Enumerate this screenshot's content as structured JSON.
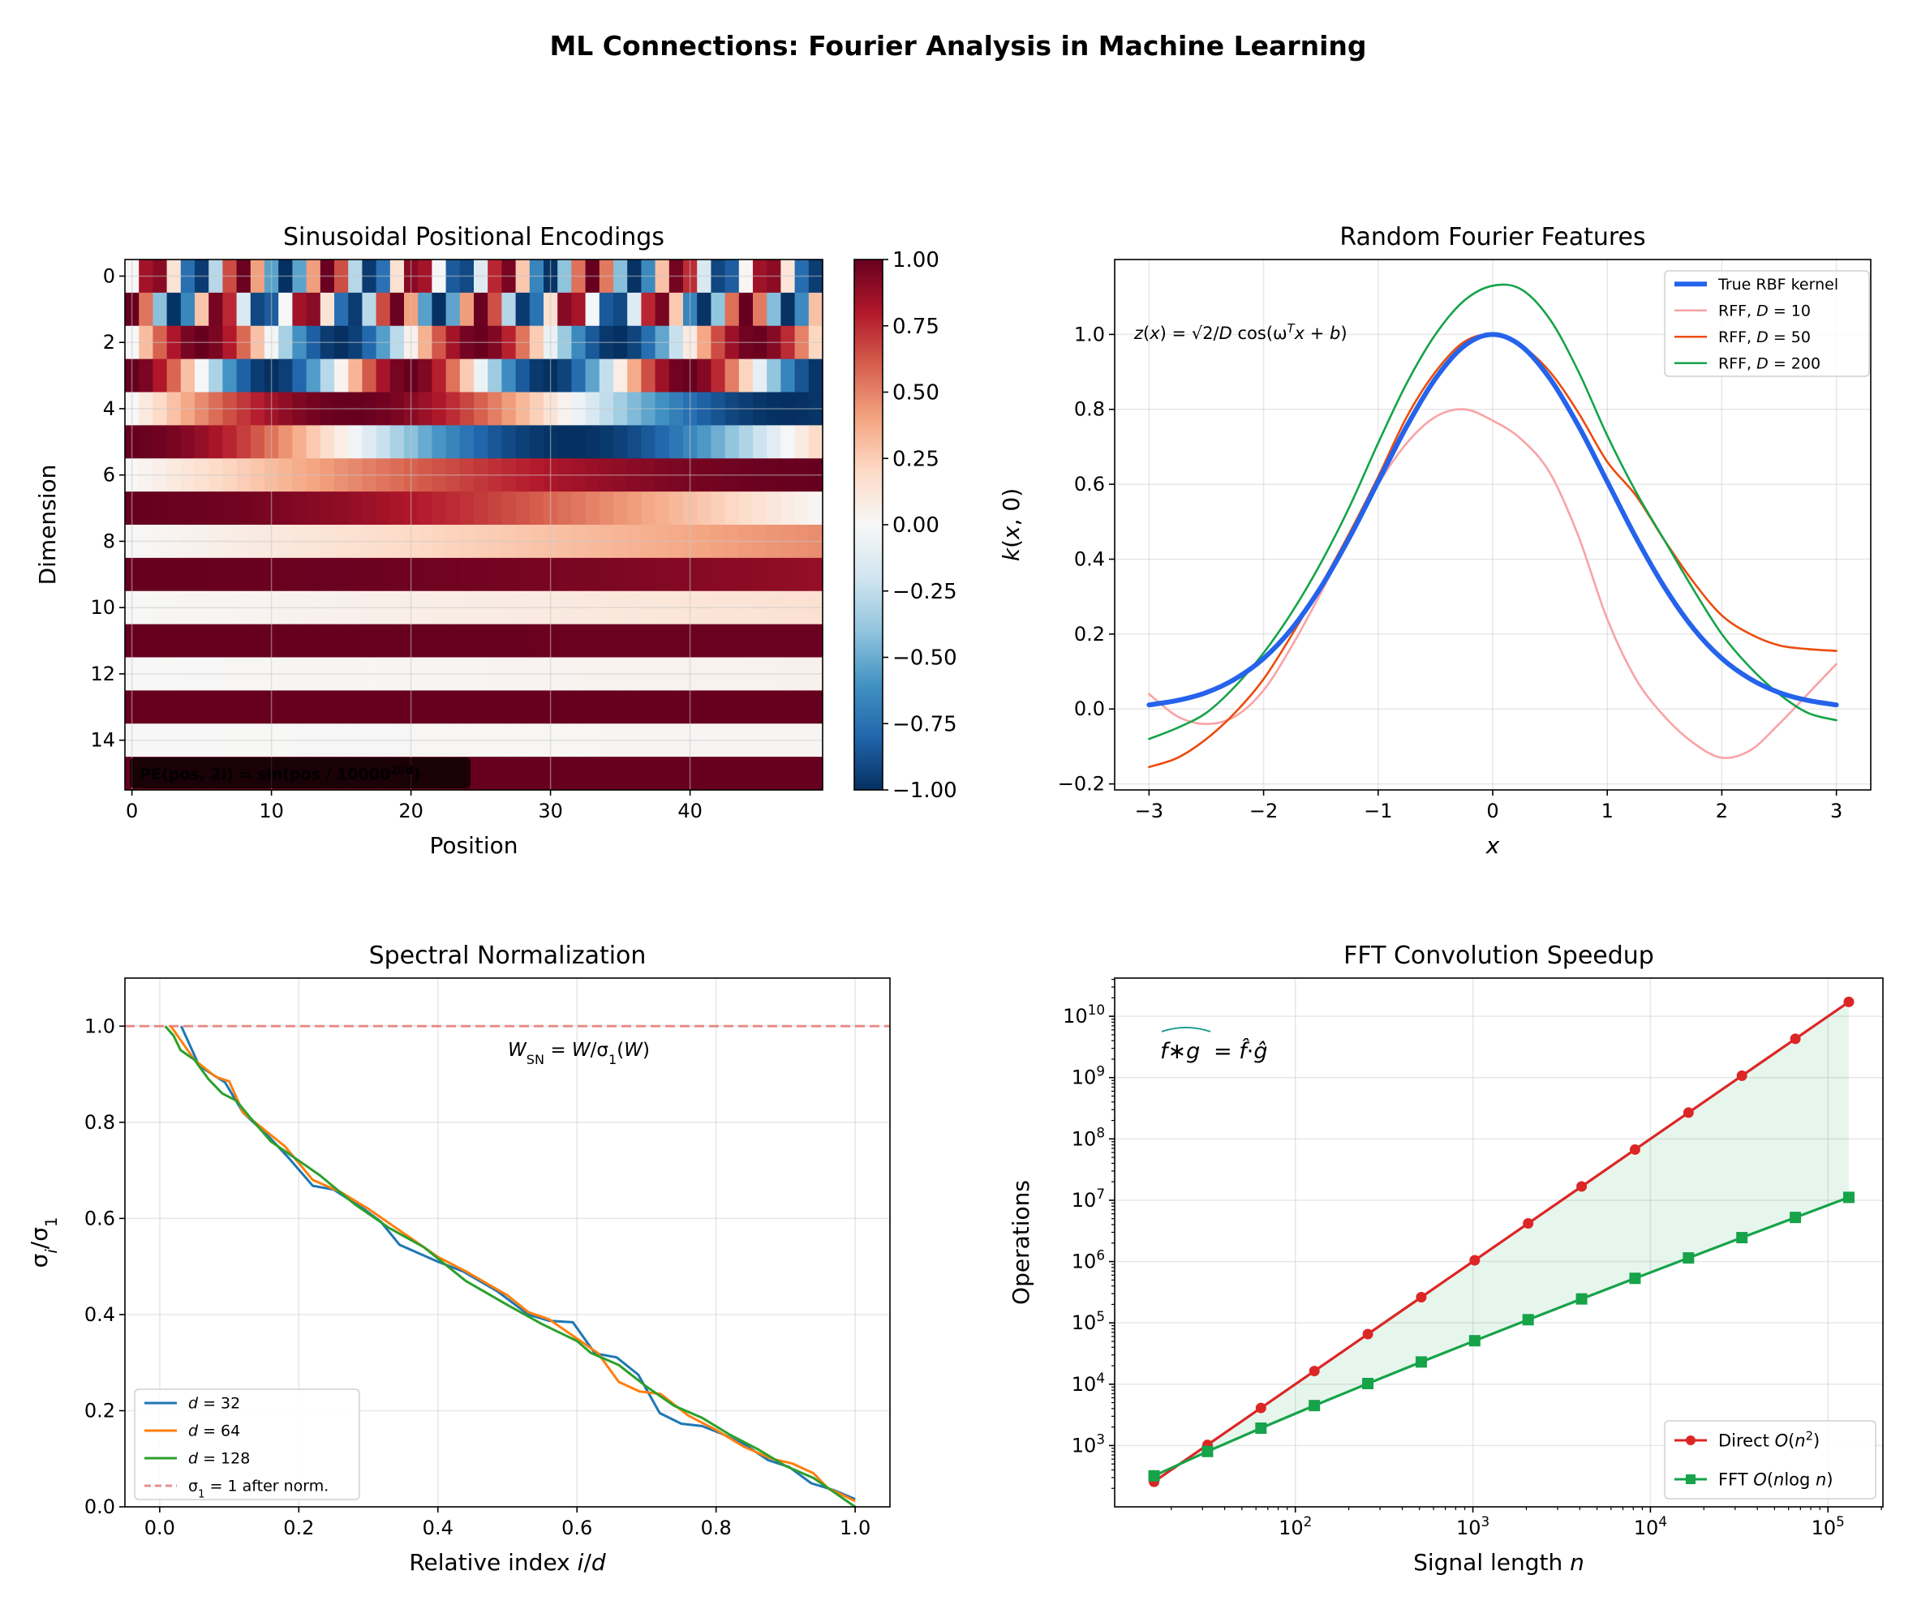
{
  "suptitle": "ML Connections: Fourier Analysis in Machine Learning",
  "chart_data": [
    {
      "type": "heatmap",
      "title": "Sinusoidal Positional Encodings",
      "xlabel": "Position",
      "ylabel": "Dimension",
      "positions": 50,
      "dimensions": 16,
      "base": 10000,
      "rule": "even rows sin(pos/base^(2i/d)), odd rows cos(pos/base^(2i/d))",
      "xticks": [
        0,
        10,
        20,
        30,
        40
      ],
      "yticks": [
        0,
        2,
        4,
        6,
        8,
        10,
        12,
        14
      ],
      "colormap": "RdBu_r",
      "colormap_stops": [
        "#67001f",
        "#b2182b",
        "#d6604d",
        "#f4a582",
        "#fddbc7",
        "#f7f7f7",
        "#d1e5f0",
        "#92c5de",
        "#4393c3",
        "#2166ac",
        "#053061"
      ],
      "clim": [
        -1,
        1
      ],
      "colorbar_ticks": [
        1.0,
        0.75,
        0.5,
        0.25,
        0.0,
        -0.25,
        -0.5,
        -0.75,
        -1.0
      ],
      "colorbar_tick_labels": [
        "1.00",
        "0.75",
        "0.50",
        "0.25",
        "0.00",
        "−0.25",
        "−0.50",
        "−0.75",
        "−1.00"
      ],
      "annotation": "PE(pos, 2i) = sin(pos / 10000^{2i/d})",
      "grid": true
    },
    {
      "type": "line",
      "title": "Random Fourier Features",
      "xlabel": "*x*",
      "ylabel": "*k*(*x*, 0)",
      "xlim": [
        -3.3,
        3.3
      ],
      "ylim": [
        -0.216,
        1.2
      ],
      "xticks": [
        -3,
        -2,
        -1,
        0,
        1,
        2,
        3
      ],
      "xtick_labels": [
        "−3",
        "−2",
        "−1",
        "0",
        "1",
        "2",
        "3"
      ],
      "yticks": [
        -0.2,
        0.0,
        0.2,
        0.4,
        0.6,
        0.8,
        1.0
      ],
      "ytick_labels": [
        "−0.2",
        "0.0",
        "0.2",
        "0.4",
        "0.6",
        "0.8",
        "1.0"
      ],
      "grid": true,
      "legend_position": "top-right",
      "annotation": "*z*(*x*) = √2/*D* cos(ω^{*T*}*x* + *b*)",
      "x": [
        -3,
        -2.75,
        -2.5,
        -2.25,
        -2,
        -1.75,
        -1.5,
        -1.25,
        -1,
        -0.75,
        -0.5,
        -0.25,
        0,
        0.25,
        0.5,
        0.75,
        1,
        1.25,
        1.5,
        1.75,
        2,
        2.25,
        2.5,
        2.75,
        3
      ],
      "series": [
        {
          "name": "True RBF kernel",
          "color": "#2563eb",
          "width": "thick",
          "values": [
            0.011,
            0.023,
            0.044,
            0.08,
            0.135,
            0.216,
            0.325,
            0.458,
            0.607,
            0.755,
            0.882,
            0.969,
            1.0,
            0.969,
            0.882,
            0.755,
            0.607,
            0.458,
            0.325,
            0.216,
            0.135,
            0.08,
            0.044,
            0.023,
            0.011
          ]
        },
        {
          "name": "RFF, *D* = 10",
          "color": "#f9a3a6",
          "values": [
            0.04,
            -0.02,
            -0.04,
            -0.02,
            0.05,
            0.17,
            0.31,
            0.46,
            0.6,
            0.71,
            0.78,
            0.8,
            0.77,
            0.72,
            0.63,
            0.46,
            0.24,
            0.08,
            -0.02,
            -0.09,
            -0.13,
            -0.11,
            -0.04,
            0.04,
            0.12
          ]
        },
        {
          "name": "RFF, *D* = 50",
          "color": "#ea4c0e",
          "values": [
            -0.155,
            -0.13,
            -0.08,
            -0.01,
            0.08,
            0.2,
            0.33,
            0.47,
            0.62,
            0.78,
            0.9,
            0.98,
            1.0,
            0.97,
            0.9,
            0.79,
            0.66,
            0.57,
            0.45,
            0.34,
            0.25,
            0.2,
            0.17,
            0.16,
            0.155
          ]
        },
        {
          "name": "RFF, *D* = 200",
          "color": "#16a34a",
          "values": [
            -0.08,
            -0.05,
            -0.01,
            0.06,
            0.15,
            0.26,
            0.39,
            0.54,
            0.71,
            0.87,
            1.0,
            1.09,
            1.13,
            1.12,
            1.04,
            0.9,
            0.73,
            0.58,
            0.45,
            0.32,
            0.2,
            0.11,
            0.04,
            -0.01,
            -0.03
          ]
        }
      ]
    },
    {
      "type": "line",
      "title": "Spectral Normalization",
      "xlabel": "Relative index *i*/*d*",
      "ylabel": "σ_{*i*}/σ_{1}",
      "xlim": [
        -0.05,
        1.05
      ],
      "ylim": [
        0,
        1.1
      ],
      "xticks": [
        0,
        0.2,
        0.4,
        0.6,
        0.8,
        1.0
      ],
      "xtick_labels": [
        "0.0",
        "0.2",
        "0.4",
        "0.6",
        "0.8",
        "1.0"
      ],
      "yticks": [
        0,
        0.2,
        0.4,
        0.6,
        0.8,
        1.0
      ],
      "ytick_labels": [
        "0.0",
        "0.2",
        "0.4",
        "0.6",
        "0.8",
        "1.0"
      ],
      "grid": true,
      "legend_position": "bottom-left",
      "annotation": "*W*_{SN} = *W*/σ_{1}(*W*)",
      "series": [
        {
          "name": "*d* = 32",
          "color": "#1f77b4",
          "points": [
            [
              0.031,
              1.0
            ],
            [
              0.057,
              0.917
            ],
            [
              0.094,
              0.883
            ],
            [
              0.12,
              0.82
            ],
            [
              0.157,
              0.77
            ],
            [
              0.186,
              0.725
            ],
            [
              0.22,
              0.668
            ],
            [
              0.25,
              0.66
            ],
            [
              0.293,
              0.62
            ],
            [
              0.318,
              0.593
            ],
            [
              0.345,
              0.545
            ],
            [
              0.4,
              0.51
            ],
            [
              0.436,
              0.49
            ],
            [
              0.486,
              0.448
            ],
            [
              0.53,
              0.4
            ],
            [
              0.56,
              0.387
            ],
            [
              0.594,
              0.384
            ],
            [
              0.626,
              0.319
            ],
            [
              0.657,
              0.311
            ],
            [
              0.688,
              0.275
            ],
            [
              0.719,
              0.195
            ],
            [
              0.75,
              0.173
            ],
            [
              0.78,
              0.168
            ],
            [
              0.81,
              0.151
            ],
            [
              0.844,
              0.127
            ],
            [
              0.875,
              0.097
            ],
            [
              0.905,
              0.083
            ],
            [
              0.937,
              0.049
            ],
            [
              0.969,
              0.035
            ],
            [
              1.0,
              0.016
            ]
          ]
        },
        {
          "name": "*d* = 64",
          "color": "#ff7f0e",
          "points": [
            [
              0.016,
              1.0
            ],
            [
              0.05,
              0.93
            ],
            [
              0.08,
              0.895
            ],
            [
              0.1,
              0.885
            ],
            [
              0.12,
              0.82
            ],
            [
              0.18,
              0.75
            ],
            [
              0.22,
              0.68
            ],
            [
              0.26,
              0.655
            ],
            [
              0.3,
              0.62
            ],
            [
              0.34,
              0.58
            ],
            [
              0.4,
              0.52
            ],
            [
              0.44,
              0.49
            ],
            [
              0.5,
              0.44
            ],
            [
              0.53,
              0.405
            ],
            [
              0.56,
              0.39
            ],
            [
              0.6,
              0.35
            ],
            [
              0.63,
              0.32
            ],
            [
              0.66,
              0.26
            ],
            [
              0.69,
              0.24
            ],
            [
              0.72,
              0.235
            ],
            [
              0.76,
              0.19
            ],
            [
              0.8,
              0.16
            ],
            [
              0.84,
              0.125
            ],
            [
              0.88,
              0.1
            ],
            [
              0.91,
              0.09
            ],
            [
              0.94,
              0.07
            ],
            [
              0.96,
              0.04
            ],
            [
              1.0,
              0.012
            ]
          ]
        },
        {
          "name": "*d* = 128",
          "color": "#2ca02c",
          "points": [
            [
              0.008,
              1.0
            ],
            [
              0.02,
              0.98
            ],
            [
              0.03,
              0.95
            ],
            [
              0.05,
              0.93
            ],
            [
              0.07,
              0.89
            ],
            [
              0.09,
              0.86
            ],
            [
              0.11,
              0.845
            ],
            [
              0.13,
              0.81
            ],
            [
              0.16,
              0.76
            ],
            [
              0.2,
              0.72
            ],
            [
              0.23,
              0.69
            ],
            [
              0.28,
              0.63
            ],
            [
              0.33,
              0.58
            ],
            [
              0.38,
              0.54
            ],
            [
              0.44,
              0.47
            ],
            [
              0.5,
              0.42
            ],
            [
              0.55,
              0.38
            ],
            [
              0.6,
              0.345
            ],
            [
              0.62,
              0.32
            ],
            [
              0.66,
              0.295
            ],
            [
              0.7,
              0.25
            ],
            [
              0.74,
              0.21
            ],
            [
              0.78,
              0.185
            ],
            [
              0.82,
              0.15
            ],
            [
              0.86,
              0.12
            ],
            [
              0.9,
              0.085
            ],
            [
              0.94,
              0.06
            ],
            [
              0.98,
              0.02
            ],
            [
              1.0,
              0.0
            ]
          ]
        }
      ],
      "reference_line": {
        "name": "σ_{1} = 1 after norm.",
        "y": 1.0,
        "color": "#e57373",
        "style": "dashed"
      }
    },
    {
      "type": "line",
      "title": "FFT Convolution Speedup",
      "xlabel": "Signal length *n*",
      "ylabel": "Operations",
      "xscale": "log",
      "yscale": "log",
      "xlim": [
        9.6,
        204000
      ],
      "ylim": [
        100,
        42000000000.0
      ],
      "xticks": [
        100,
        1000,
        10000,
        100000
      ],
      "xtick_labels": [
        "10^{2}",
        "10^{3}",
        "10^{4}",
        "10^{5}"
      ],
      "yticks": [
        1000.0,
        10000.0,
        100000.0,
        1000000.0,
        10000000.0,
        100000000.0,
        1000000000.0,
        10000000000.0
      ],
      "ytick_labels": [
        "10^{3}",
        "10^{4}",
        "10^{5}",
        "10^{6}",
        "10^{7}",
        "10^{8}",
        "10^{9}",
        "10^{10}"
      ],
      "grid": true,
      "legend_position": "bottom-right",
      "annotation": {
        "lhs": "*f*∗*g*",
        "rhs": " = *f̂*·*ĝ*"
      },
      "x": [
        16,
        32,
        64,
        128,
        256,
        512,
        1024,
        2048,
        4096,
        8192,
        16384,
        32768,
        65536,
        131072
      ],
      "series": [
        {
          "name": "Direct *O*(*n*^{2})",
          "color": "#dc2626",
          "marker": "circle",
          "values": [
            256,
            1024,
            4096,
            16384,
            65536,
            262144,
            1048576,
            4194304,
            16777216,
            67108864,
            268435456,
            1073741824,
            4294967296,
            17179869184
          ]
        },
        {
          "name": "FFT *O*(*n*log *n*)",
          "color": "#16a34a",
          "marker": "square",
          "values": [
            320,
            800,
            1920,
            4480,
            10240,
            23040,
            51200,
            112640,
            245760,
            532480,
            1146880,
            2457600,
            5242880,
            11141120
          ]
        }
      ],
      "fill_between": {
        "color": "#16a34a",
        "opacity": 0.1
      }
    }
  ]
}
